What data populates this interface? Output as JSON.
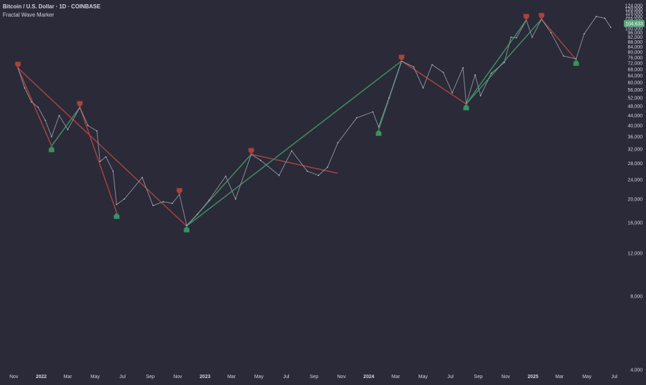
{
  "header": {
    "symbol": "Bitcoin / U.S. Dollar · 1D · COINBASE",
    "indicator": "Fractal Wave Marker"
  },
  "colors": {
    "background": "#2a2a39",
    "up": "#3e8f62",
    "down": "#a8433e",
    "text": "#d1d4dc",
    "price_label_bg": "#5aa37b"
  },
  "price_axis_ticks": [
    "124,000",
    "120,000",
    "116,000",
    "112,000",
    "108,000",
    "104,000",
    "100,000",
    "96,000",
    "92,000",
    "88,000",
    "84,000",
    "80,000",
    "76,000",
    "72,000",
    "68,000",
    "64,000",
    "60,000",
    "56,000",
    "52,000",
    "48,000",
    "44,000",
    "40,000",
    "36,000",
    "32,000",
    "28,000",
    "24,000",
    "20,000",
    "16,000",
    "12,000",
    "8,000",
    "4,000"
  ],
  "last_price_label": "104,633",
  "time_axis_ticks": [
    {
      "label": "Nov",
      "bold": false
    },
    {
      "label": "2022",
      "bold": true
    },
    {
      "label": "Mar",
      "bold": false
    },
    {
      "label": "May",
      "bold": false
    },
    {
      "label": "Jul",
      "bold": false
    },
    {
      "label": "Sep",
      "bold": false
    },
    {
      "label": "Nov",
      "bold": false
    },
    {
      "label": "2023",
      "bold": true
    },
    {
      "label": "Mar",
      "bold": false
    },
    {
      "label": "May",
      "bold": false
    },
    {
      "label": "Jul",
      "bold": false
    },
    {
      "label": "Sep",
      "bold": false
    },
    {
      "label": "Nov",
      "bold": false
    },
    {
      "label": "2024",
      "bold": true
    },
    {
      "label": "Mar",
      "bold": false
    },
    {
      "label": "May",
      "bold": false
    },
    {
      "label": "Jul",
      "bold": false
    },
    {
      "label": "Sep",
      "bold": false
    },
    {
      "label": "Nov",
      "bold": false
    },
    {
      "label": "2025",
      "bold": true
    },
    {
      "label": "Mar",
      "bold": false
    },
    {
      "label": "May",
      "bold": false
    },
    {
      "label": "Jul",
      "bold": false
    }
  ],
  "chart_data": {
    "type": "line",
    "symbol": "BTCUSD",
    "exchange": "COINBASE",
    "timeframe": "1D",
    "y_scale": "log",
    "ylim": [
      4000,
      124000
    ],
    "xlim": [
      "2021-10-01",
      "2025-07-10"
    ],
    "grid": false,
    "series": [
      {
        "name": "Close",
        "x": [
          "2021-11-10",
          "2021-11-25",
          "2021-12-10",
          "2021-12-25",
          "2022-01-10",
          "2022-01-24",
          "2022-02-10",
          "2022-03-01",
          "2022-03-28",
          "2022-04-15",
          "2022-05-05",
          "2022-05-12",
          "2022-05-25",
          "2022-06-10",
          "2022-06-18",
          "2022-07-05",
          "2022-08-14",
          "2022-09-07",
          "2022-09-30",
          "2022-10-20",
          "2022-11-05",
          "2022-11-21",
          "2022-12-15",
          "2023-01-10",
          "2023-02-16",
          "2023-03-10",
          "2023-04-14",
          "2023-05-05",
          "2023-06-15",
          "2023-07-13",
          "2023-08-17",
          "2023-09-11",
          "2023-10-01",
          "2023-10-24",
          "2023-12-05",
          "2024-01-10",
          "2024-01-23",
          "2024-02-15",
          "2024-03-14",
          "2024-04-10",
          "2024-05-01",
          "2024-05-21",
          "2024-06-15",
          "2024-07-05",
          "2024-07-29",
          "2024-08-05",
          "2024-08-25",
          "2024-09-06",
          "2024-09-30",
          "2024-10-29",
          "2024-11-13",
          "2024-11-25",
          "2024-12-17",
          "2024-12-30",
          "2025-01-20",
          "2025-02-10",
          "2025-03-10",
          "2025-04-07",
          "2025-04-25",
          "2025-05-22",
          "2025-06-10",
          "2025-06-23"
        ],
        "y": [
          68800,
          57000,
          50000,
          47500,
          42000,
          36000,
          44000,
          38500,
          47500,
          40000,
          38000,
          28500,
          29800,
          26000,
          19000,
          20000,
          24500,
          18800,
          19500,
          19200,
          20900,
          15600,
          17300,
          19800,
          24800,
          20000,
          30500,
          28800,
          25000,
          31500,
          26000,
          25000,
          27000,
          34000,
          43000,
          45500,
          39500,
          52000,
          73500,
          69500,
          57000,
          71000,
          66000,
          54500,
          69000,
          49000,
          64500,
          53000,
          65500,
          72500,
          92000,
          91500,
          108000,
          92000,
          109000,
          96000,
          77000,
          75000,
          95000,
          111900,
          110000,
          101000
        ]
      }
    ],
    "fractal_highs": [
      {
        "date": "2021-11-10",
        "price": 68800
      },
      {
        "date": "2022-03-28",
        "price": 47500
      },
      {
        "date": "2022-11-05",
        "price": 20900
      },
      {
        "date": "2023-04-14",
        "price": 30500
      },
      {
        "date": "2024-03-14",
        "price": 73500
      },
      {
        "date": "2024-12-17",
        "price": 108000
      },
      {
        "date": "2025-01-20",
        "price": 109000
      }
    ],
    "fractal_lows": [
      {
        "date": "2022-01-24",
        "price": 33000
      },
      {
        "date": "2022-06-18",
        "price": 17600
      },
      {
        "date": "2022-11-21",
        "price": 15500
      },
      {
        "date": "2024-01-23",
        "price": 38500
      },
      {
        "date": "2024-08-05",
        "price": 49000
      },
      {
        "date": "2025-04-07",
        "price": 74500
      }
    ],
    "waves": [
      {
        "from": "2021-11-10",
        "from_price": 68800,
        "to": "2022-01-24",
        "to_price": 33000,
        "direction": "down"
      },
      {
        "from": "2022-01-24",
        "from_price": 33000,
        "to": "2022-03-28",
        "to_price": 47500,
        "direction": "up"
      },
      {
        "from": "2021-11-10",
        "from_price": 68800,
        "to": "2022-11-21",
        "to_price": 15500,
        "direction": "down"
      },
      {
        "from": "2022-03-28",
        "from_price": 47500,
        "to": "2022-06-18",
        "to_price": 17600,
        "direction": "down"
      },
      {
        "from": "2022-11-21",
        "from_price": 15500,
        "to": "2023-04-14",
        "to_price": 30500,
        "direction": "up"
      },
      {
        "from": "2022-11-21",
        "from_price": 15500,
        "to": "2024-03-14",
        "to_price": 73500,
        "direction": "up"
      },
      {
        "from": "2023-04-14",
        "from_price": 30500,
        "to": "2023-10-24",
        "to_price": 25500,
        "direction": "down"
      },
      {
        "from": "2024-01-23",
        "from_price": 38500,
        "to": "2024-03-14",
        "to_price": 73500,
        "direction": "up"
      },
      {
        "from": "2024-03-14",
        "from_price": 73500,
        "to": "2024-08-05",
        "to_price": 49000,
        "direction": "down"
      },
      {
        "from": "2024-08-05",
        "from_price": 49000,
        "to": "2024-12-17",
        "to_price": 108000,
        "direction": "up"
      },
      {
        "from": "2024-08-05",
        "from_price": 49000,
        "to": "2025-01-20",
        "to_price": 109000,
        "direction": "up"
      },
      {
        "from": "2025-01-20",
        "from_price": 109000,
        "to": "2025-04-07",
        "to_price": 74500,
        "direction": "down"
      }
    ],
    "last_price": 104633
  }
}
